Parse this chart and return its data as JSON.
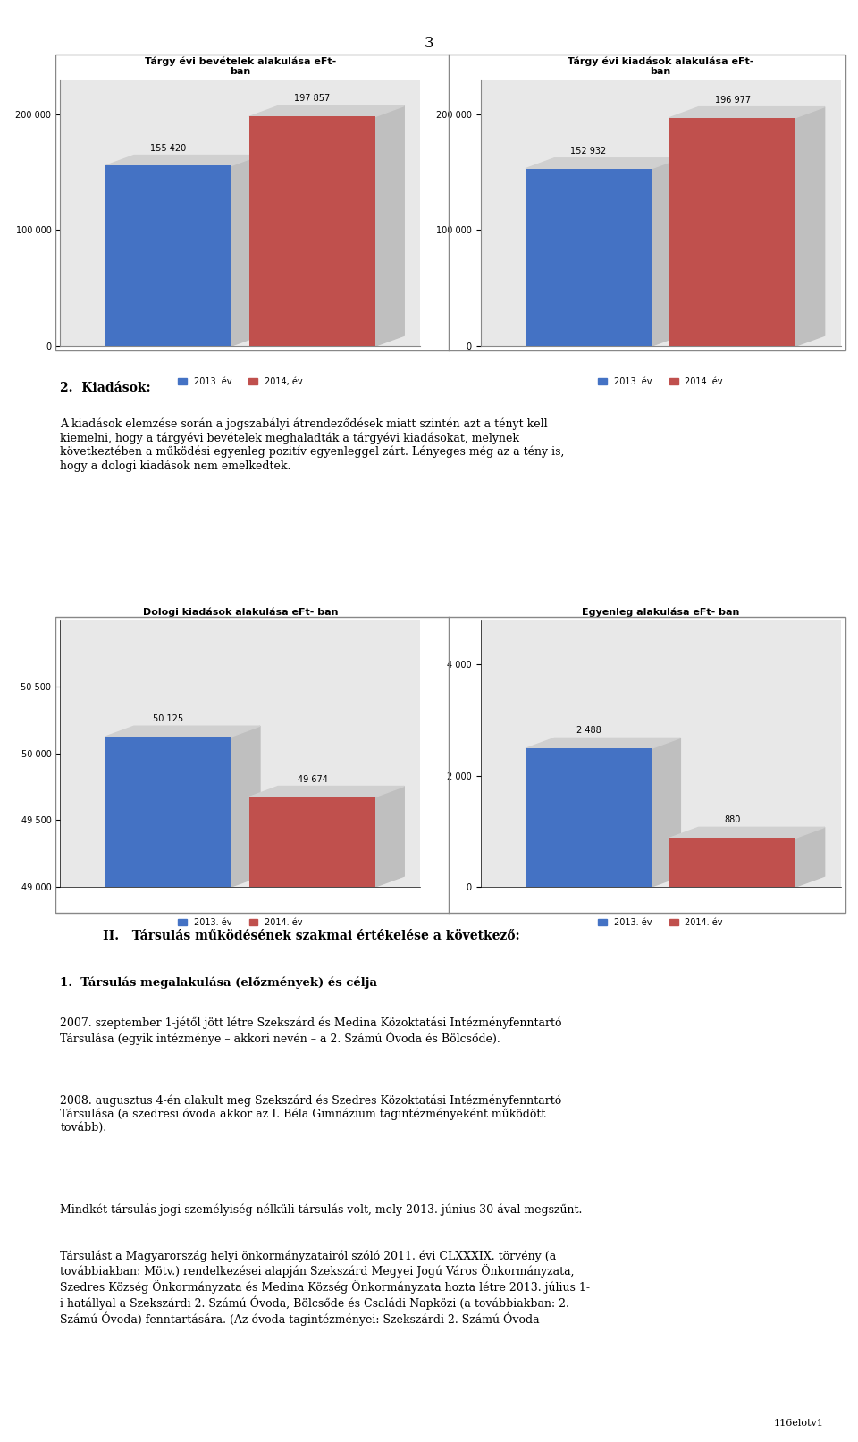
{
  "page_num": "3",
  "chart1": {
    "title": "Tárgy évi bevételek alakulása eFt-\nban",
    "values": [
      155420,
      197857
    ],
    "labels": [
      "155 420",
      "197 857"
    ],
    "legend": [
      "2013. év",
      "2014, év"
    ],
    "yticks": [
      0,
      100000,
      200000
    ],
    "ytick_labels": [
      "0",
      "100 000",
      "200 000"
    ],
    "ylim": [
      0,
      230000
    ]
  },
  "chart2": {
    "title": "Tárgy évi kiadások alakulása eFt-\nban",
    "values": [
      152932,
      196977
    ],
    "labels": [
      "152 932",
      "196 977"
    ],
    "legend": [
      "2013. év",
      "2014. év"
    ],
    "yticks": [
      0,
      100000,
      200000
    ],
    "ytick_labels": [
      "0",
      "100 000",
      "200 000"
    ],
    "ylim": [
      0,
      230000
    ]
  },
  "section2_title": "2.  Kiadások:",
  "section2_text": "A kiadások elemzése során a jogszabályi átrendeződések miatt szintén azt a tényt kell\nkiemelni, hogy a tárgyévi bevételek meghaladták a tárgyévi kiadásokat, melynek\nkövetkeztében a működési egyenleg pozitív egyenleggel zárt. Lényeges még az a tény is,\nhogy a dologi kiadások nem emelkedtek.",
  "chart3": {
    "title": "Dologi kiadások alakulása eFt- ban",
    "values": [
      50125,
      49674
    ],
    "labels": [
      "50 125",
      "49 674"
    ],
    "legend": [
      "2013. év",
      "2014. év"
    ],
    "yticks": [
      49000,
      49500,
      50000,
      50500
    ],
    "ytick_labels": [
      "49 000",
      "49 500",
      "50 000",
      "50 500"
    ],
    "ylim": [
      49000,
      51000
    ]
  },
  "chart4": {
    "title": "Egyenleg alakulása eFt- ban",
    "values": [
      2488,
      880
    ],
    "labels": [
      "2 488",
      "880"
    ],
    "legend": [
      "2013. év",
      "2014. év"
    ],
    "yticks": [
      0,
      2000,
      4000
    ],
    "ytick_labels": [
      "0",
      "2 000",
      "4 000"
    ],
    "ylim": [
      0,
      4800
    ]
  },
  "section3_title": "II.   Társulás működésének szakmai értékelése a következő:",
  "section3_sub": "1.  Társulás megalakulása (előzmények) és célja",
  "section3_text1": "2007. szeptember 1-jétől jött létre Szekszárd és Medina Közoktatási Intézményfenntartó\nTársulása (egyik intézménye – akkori nevén – a 2. Számú Óvoda és Bölcsőde).",
  "section3_text2": "2008. augusztus 4-én alakult meg Szekszárd és Szedres Közoktatási Intézményfenntartó\nTársulása (a szedresi óvoda akkor az I. Béla Gimnázium tagintézményeként működött\ntovább).",
  "section3_text3": "Mindkét társulás jogi személyiség nélküli társulás volt, mely 2013. június 30-ával megszűnt.",
  "section3_text4": "Társulást a Magyarország helyi önkormányzatairól szóló 2011. évi CLXXXIX. törvény (a\ntovábbiakban: Mötv.) rendelkezései alapján Szekszárd Megyei Jogú Város Önkormányzata,\nSzedres Község Önkormányzata és Medina Község Önkormányzata hozta létre 2013. július 1-\ni hatállyal a Szekszárdi 2. Számú Óvoda, Bölcsőde és Családi Napközi (a továbbiakban: 2.\nSzámú Óvoda) fenntartására. (Az óvoda tagintézményei: Szekszárdi 2. Számú Óvoda",
  "footer": "116elotv1",
  "bar_color_blue": "#4472C4",
  "bar_color_red": "#C0504D",
  "bar_shadow_color": "#BFBFBF",
  "chart_bg": "#E8E8E8",
  "chart_border": "#7F7F7F"
}
